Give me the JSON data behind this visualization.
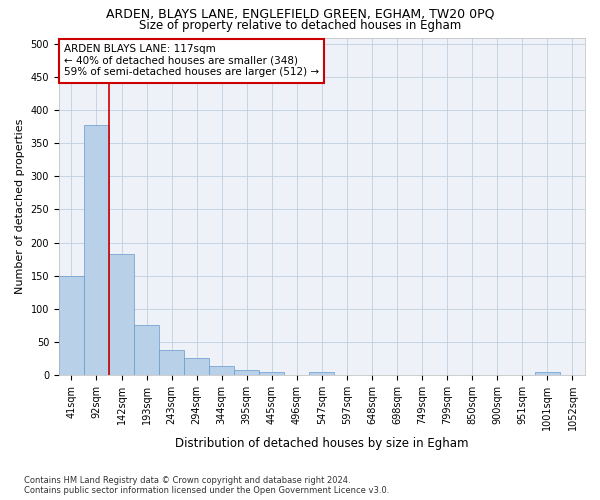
{
  "title": "ARDEN, BLAYS LANE, ENGLEFIELD GREEN, EGHAM, TW20 0PQ",
  "subtitle": "Size of property relative to detached houses in Egham",
  "xlabel": "Distribution of detached houses by size in Egham",
  "ylabel": "Number of detached properties",
  "bar_labels": [
    "41sqm",
    "92sqm",
    "142sqm",
    "193sqm",
    "243sqm",
    "294sqm",
    "344sqm",
    "395sqm",
    "445sqm",
    "496sqm",
    "547sqm",
    "597sqm",
    "648sqm",
    "698sqm",
    "749sqm",
    "799sqm",
    "850sqm",
    "900sqm",
    "951sqm",
    "1001sqm",
    "1052sqm"
  ],
  "bar_values": [
    150,
    378,
    182,
    76,
    38,
    25,
    14,
    8,
    5,
    0,
    4,
    0,
    0,
    0,
    0,
    0,
    0,
    0,
    0,
    5,
    0
  ],
  "bar_color": "#b8d0e8",
  "bar_edgecolor": "#6699cc",
  "grid_color": "#c0d0e0",
  "bg_color": "#eef2f8",
  "vline_color": "#cc0000",
  "annotation_title": "ARDEN BLAYS LANE: 117sqm",
  "annotation_line1": "← 40% of detached houses are smaller (348)",
  "annotation_line2": "59% of semi-detached houses are larger (512) →",
  "box_color": "#cc0000",
  "ylim": [
    0,
    510
  ],
  "yticks": [
    0,
    50,
    100,
    150,
    200,
    250,
    300,
    350,
    400,
    450,
    500
  ],
  "footer_line1": "Contains HM Land Registry data © Crown copyright and database right 2024.",
  "footer_line2": "Contains public sector information licensed under the Open Government Licence v3.0.",
  "title_fontsize": 9,
  "subtitle_fontsize": 8.5,
  "ylabel_fontsize": 8,
  "xlabel_fontsize": 8.5,
  "tick_fontsize": 7,
  "footer_fontsize": 6
}
